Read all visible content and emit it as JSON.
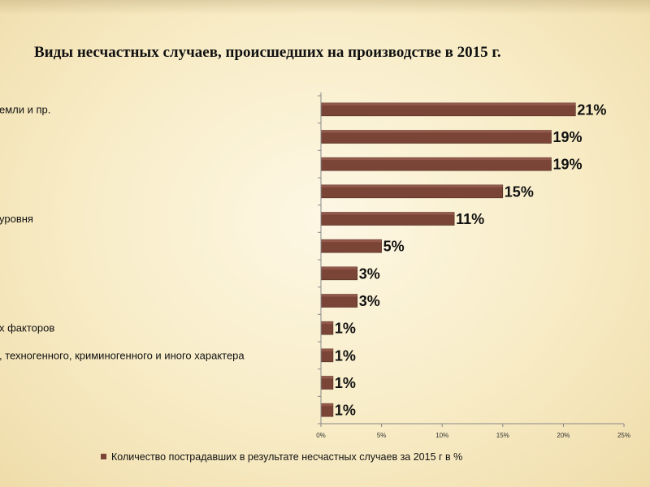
{
  "slide": {
    "title": "Виды несчастных случаев, происшедших на производстве в 2015 г."
  },
  "colors": {
    "bar": "#7a4436",
    "bar_edge": "#4e2a22",
    "axis": "#888888"
  },
  "chart_data": {
    "type": "bar",
    "orientation": "horizontal",
    "categories": [
      "емли и пр.",
      "",
      "",
      "",
      "уровня",
      "",
      "",
      "",
      "х факторов",
      ", техногенного, криминогенного и иного характера",
      "",
      ""
    ],
    "series": [
      {
        "name": "Количество пострадавших в результате несчастных случаев за 2015 г в %",
        "values": [
          21,
          19,
          19,
          15,
          11,
          5,
          3,
          3,
          1,
          1,
          1,
          1
        ]
      }
    ],
    "value_labels": [
      "21%",
      "19%",
      "19%",
      "15%",
      "11%",
      "5%",
      "3%",
      "3%",
      "1%",
      "1%",
      "1%",
      "1%"
    ],
    "x_ticks": [
      0,
      5,
      10,
      15,
      20,
      25
    ],
    "x_tick_labels": [
      "0%",
      "5%",
      "10%",
      "15%",
      "20%",
      "25%"
    ],
    "xlim": [
      0,
      25
    ],
    "grid": false,
    "legend_position": "bottom"
  }
}
